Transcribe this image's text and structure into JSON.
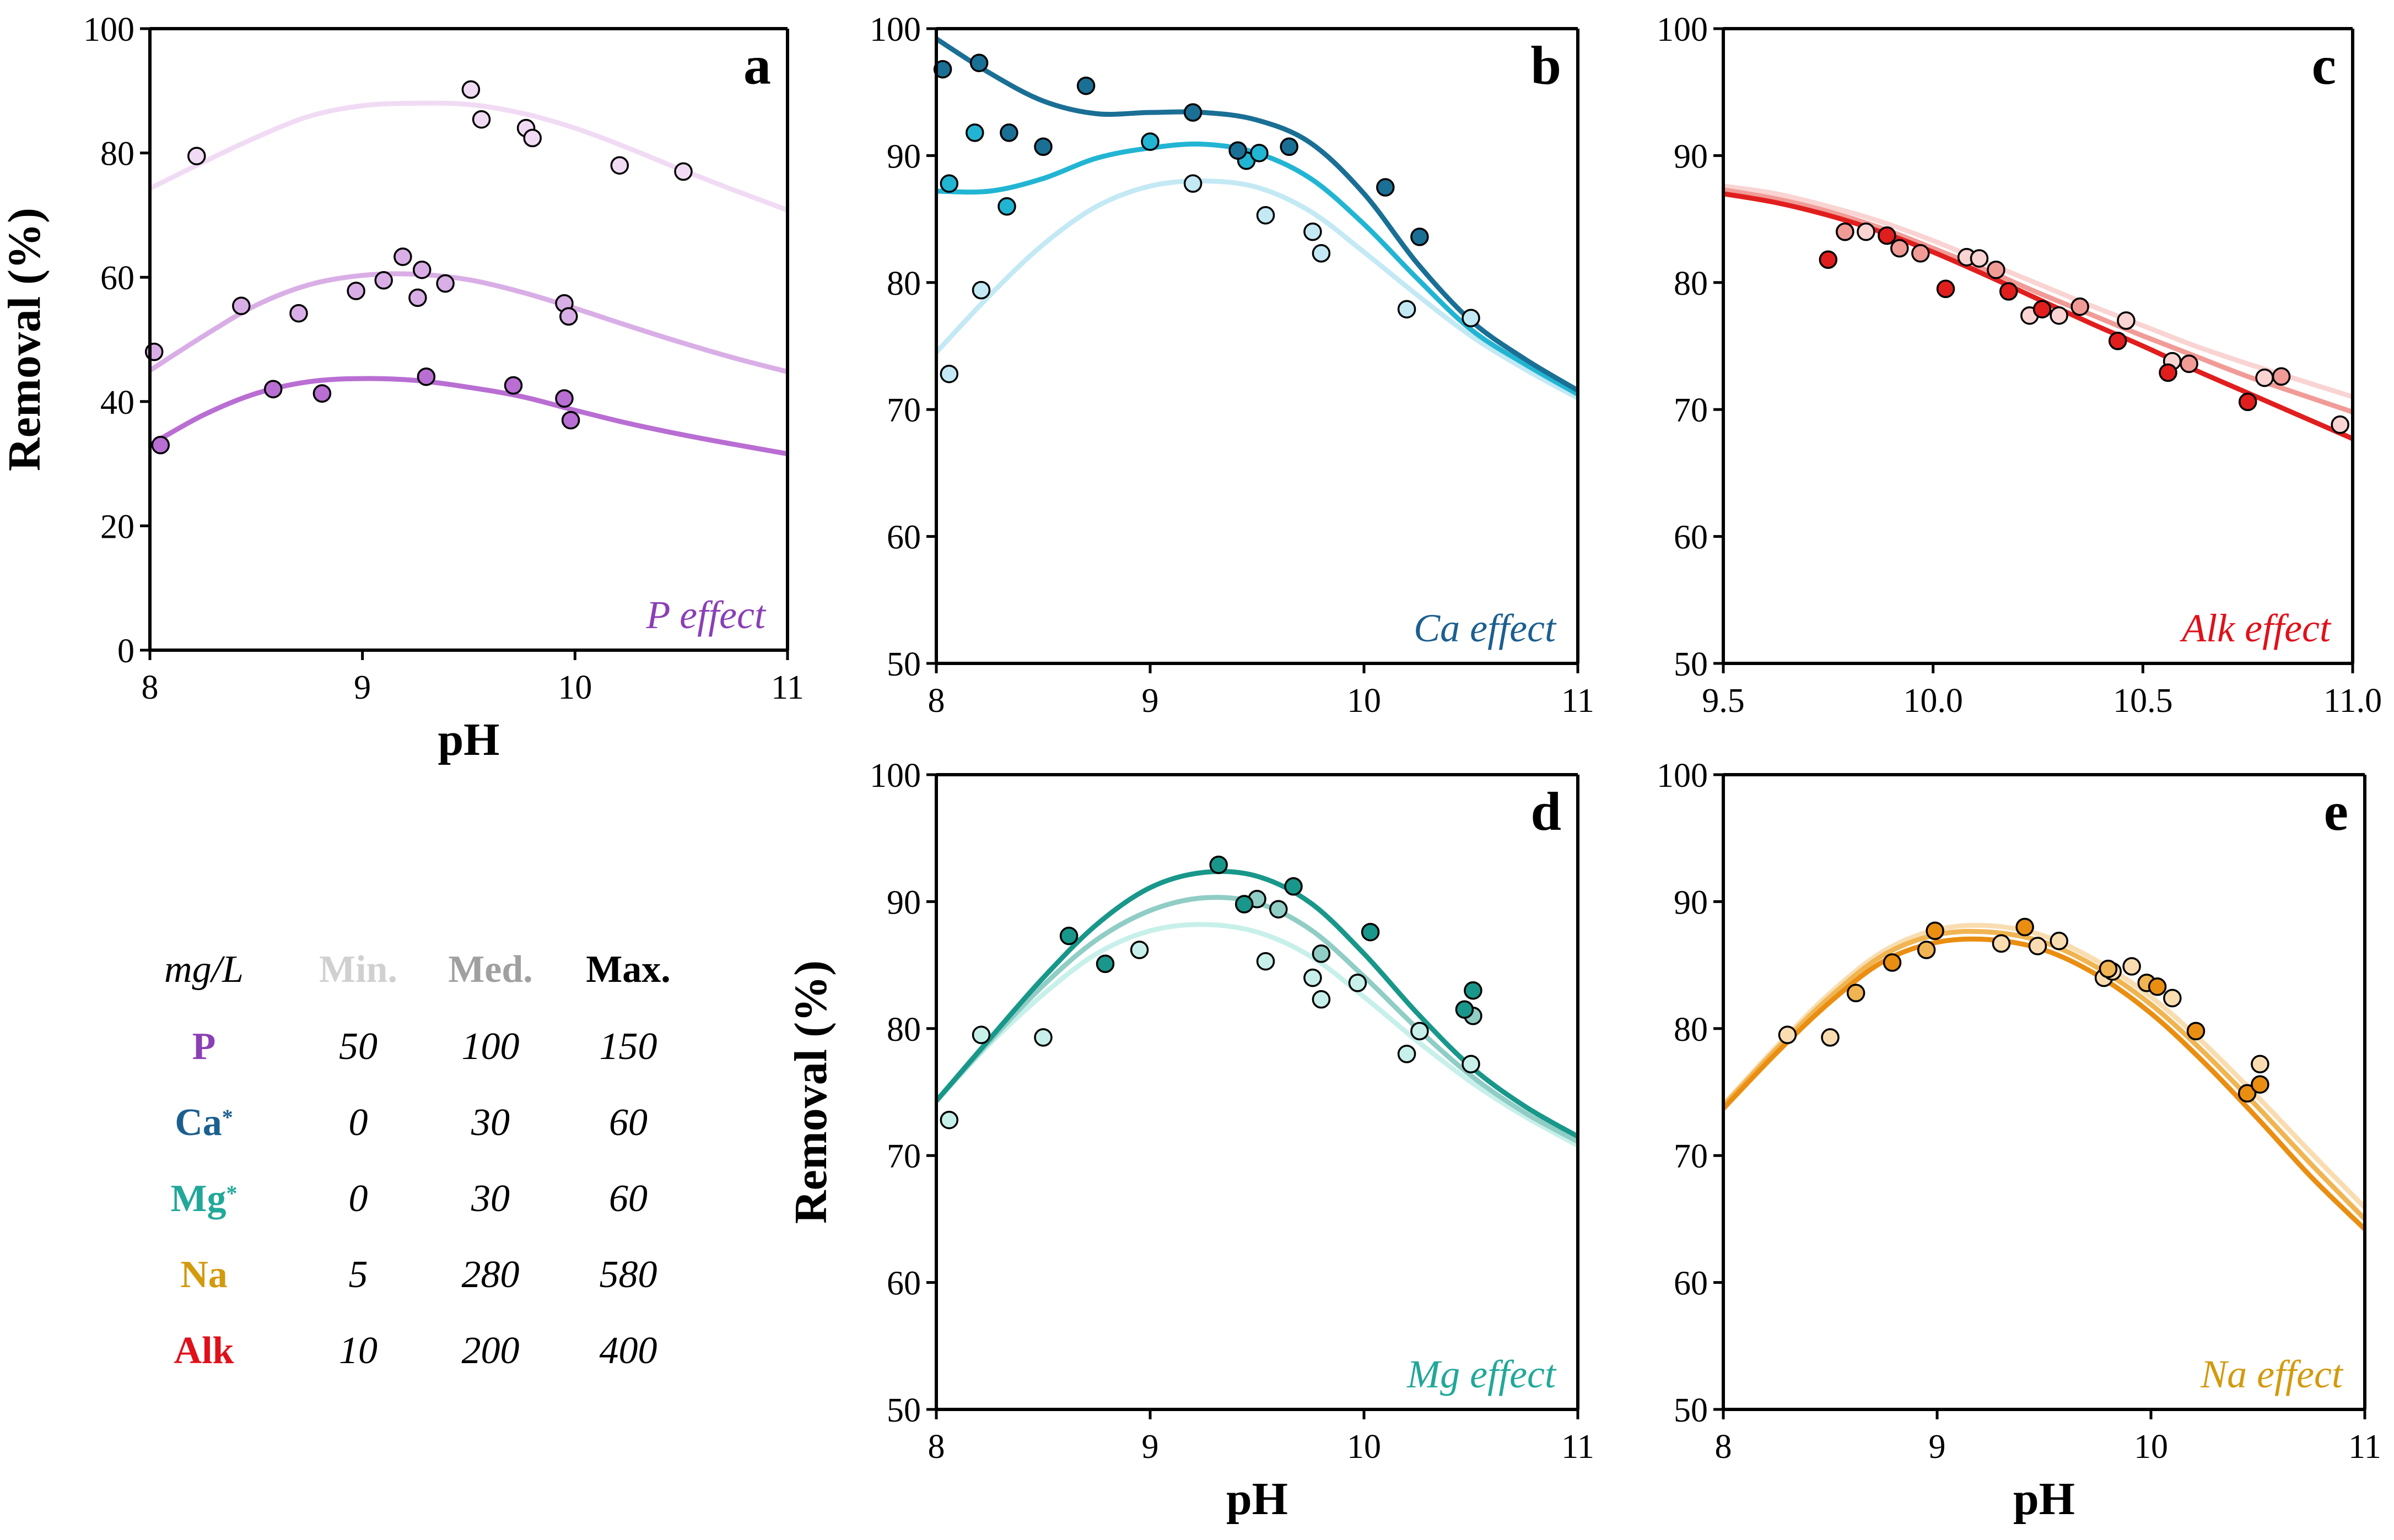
{
  "figure": {
    "legend": {
      "unit_label": "mg/L",
      "col_min": "Min.",
      "col_med": "Med.",
      "col_max": "Max.",
      "col_colors": {
        "min": "#d0d0d0",
        "med": "#a0a0a0",
        "max": "#000000"
      },
      "rows": [
        {
          "name": "P",
          "sup": "",
          "color": "#8a3fb5",
          "min": "50",
          "med": "100",
          "max": "150"
        },
        {
          "name": "Ca",
          "sup": "*",
          "color": "#1c5f8f",
          "min": "0",
          "med": "30",
          "max": "60"
        },
        {
          "name": "Mg",
          "sup": "*",
          "color": "#21a89a",
          "min": "0",
          "med": "30",
          "max": "60"
        },
        {
          "name": "Na",
          "sup": "",
          "color": "#d39a0e",
          "min": "5",
          "med": "280",
          "max": "580"
        },
        {
          "name": "Alk",
          "sup": "",
          "color": "#e0101a",
          "min": "10",
          "med": "200",
          "max": "400"
        }
      ]
    }
  },
  "chart_data": [
    {
      "id": "a",
      "type": "scatter",
      "panel_label": "a",
      "effect_label": "P effect",
      "effect_color": "#8a3fb5",
      "xlabel": "pH",
      "ylabel": "Removal (%)",
      "xlim": [
        8,
        11
      ],
      "ylim": [
        0,
        100
      ],
      "xticks": [
        8,
        9,
        10,
        11
      ],
      "xtick_labels": [
        "8",
        "9",
        "10",
        "11"
      ],
      "yticks": [
        0,
        20,
        40,
        60,
        80,
        100
      ],
      "ytick_labels": [
        "0",
        "20",
        "40",
        "60",
        "80",
        "100"
      ],
      "series": [
        {
          "name": "P Min.",
          "color": "#f1dbf4",
          "curve_x": [
            8,
            8.25,
            8.5,
            8.75,
            9,
            9.25,
            9.5,
            9.75,
            10,
            10.25,
            10.5,
            10.75,
            11
          ],
          "curve_y": [
            74.3,
            78.5,
            82.5,
            85.9,
            87.6,
            88.0,
            87.8,
            86.4,
            84.0,
            80.8,
            77.3,
            74.0,
            70.8
          ],
          "points_x": [
            8.22,
            9.51,
            9.56,
            9.77,
            9.8,
            10.21,
            10.51
          ],
          "points_y": [
            79.5,
            90.2,
            85.4,
            84.0,
            82.4,
            78.0,
            77.0
          ]
        },
        {
          "name": "P Med.",
          "color": "#d9aee6",
          "curve_x": [
            8,
            8.25,
            8.5,
            8.75,
            9,
            9.25,
            9.5,
            9.75,
            10,
            10.25,
            10.5,
            10.75,
            11
          ],
          "curve_y": [
            45.0,
            50.5,
            55.5,
            58.8,
            60.3,
            60.5,
            59.6,
            57.6,
            55.0,
            52.2,
            49.5,
            47.0,
            44.8
          ],
          "points_x": [
            8.02,
            8.43,
            8.7,
            8.97,
            9.1,
            9.19,
            9.26,
            9.28,
            9.39,
            9.95,
            9.97
          ],
          "points_y": [
            48.0,
            55.4,
            54.2,
            57.8,
            59.5,
            63.3,
            56.7,
            61.2,
            59.0,
            55.8,
            53.7
          ]
        },
        {
          "name": "P Max.",
          "color": "#b96ed3",
          "curve_x": [
            8,
            8.25,
            8.5,
            8.75,
            9,
            9.25,
            9.5,
            9.75,
            10,
            10.25,
            10.5,
            10.75,
            11
          ],
          "curve_y": [
            33.0,
            37.8,
            41.3,
            43.2,
            43.7,
            43.4,
            42.3,
            40.8,
            38.6,
            36.5,
            34.7,
            33.1,
            31.6
          ],
          "points_x": [
            8.05,
            8.58,
            8.81,
            9.3,
            9.71,
            9.95,
            9.98
          ],
          "points_y": [
            33.0,
            42.0,
            41.3,
            44.0,
            42.6,
            40.5,
            37.0
          ]
        }
      ]
    },
    {
      "id": "b",
      "type": "scatter",
      "panel_label": "b",
      "effect_label": "Ca effect",
      "effect_color": "#1c5f8f",
      "xlabel": "",
      "ylabel": "",
      "xlim": [
        8,
        11
      ],
      "ylim": [
        50,
        100
      ],
      "xticks": [
        8,
        9,
        10,
        11
      ],
      "xtick_labels": [
        "8",
        "9",
        "10",
        "11"
      ],
      "yticks": [
        50,
        60,
        70,
        80,
        90,
        100
      ],
      "ytick_labels": [
        "50",
        "60",
        "70",
        "80",
        "90",
        "100"
      ],
      "series": [
        {
          "name": "Ca Min.",
          "color": "#c3e9f4",
          "curve_x": [
            8,
            8.25,
            8.5,
            8.75,
            9,
            9.25,
            9.5,
            9.75,
            10,
            10.25,
            10.5,
            10.75,
            11
          ],
          "curve_y": [
            74.5,
            79.0,
            83.0,
            86.0,
            87.6,
            88.0,
            87.5,
            85.6,
            82.4,
            79.0,
            75.8,
            73.2,
            70.9
          ],
          "points_x": [
            8.06,
            8.21,
            9.2,
            9.54,
            9.76,
            9.8,
            10.2,
            10.5
          ],
          "points_y": [
            72.8,
            79.4,
            87.8,
            85.3,
            84.0,
            82.3,
            77.9,
            77.2
          ]
        },
        {
          "name": "Ca Med.",
          "color": "#22b5d3",
          "curve_x": [
            8,
            8.25,
            8.5,
            8.75,
            9,
            9.25,
            9.5,
            9.75,
            10,
            10.25,
            10.5,
            10.75,
            11
          ],
          "curve_y": [
            87.2,
            87.2,
            88.2,
            89.8,
            90.6,
            90.9,
            90.2,
            88.2,
            84.6,
            80.3,
            76.3,
            73.6,
            71.2
          ],
          "points_x": [
            8.06,
            8.18,
            8.33,
            9.0,
            9.45,
            9.51
          ],
          "points_y": [
            87.8,
            91.8,
            86.0,
            91.1,
            89.6,
            90.2
          ]
        },
        {
          "name": "Ca Max.",
          "color": "#1a6f95",
          "curve_x": [
            8,
            8.25,
            8.5,
            8.75,
            9,
            9.25,
            9.5,
            9.75,
            10,
            10.25,
            10.5,
            10.75,
            11
          ],
          "curve_y": [
            99.2,
            96.5,
            94.3,
            93.3,
            93.4,
            93.4,
            92.8,
            91.0,
            87.0,
            81.5,
            77.0,
            74.0,
            71.5
          ],
          "points_x": [
            8.03,
            8.2,
            8.34,
            8.5,
            8.7,
            9.2,
            9.41,
            9.65,
            10.1,
            10.26
          ],
          "points_y": [
            96.8,
            97.3,
            91.8,
            90.7,
            95.5,
            93.4,
            90.4,
            90.7,
            87.5,
            83.6
          ]
        }
      ]
    },
    {
      "id": "c",
      "type": "scatter",
      "panel_label": "c",
      "effect_label": "Alk effect",
      "effect_color": "#e0101a",
      "xlabel": "",
      "ylabel": "",
      "xlim": [
        9.5,
        11.0
      ],
      "ylim": [
        50,
        100
      ],
      "xticks": [
        9.5,
        10.0,
        10.5,
        11.0
      ],
      "xtick_labels": [
        "9.5",
        "10.0",
        "10.5",
        "11.0"
      ],
      "yticks": [
        50,
        60,
        70,
        80,
        90,
        100
      ],
      "yticks_labels_note": "",
      "ytick_labels": [
        "50",
        "60",
        "70",
        "80",
        "90",
        "100"
      ],
      "series": [
        {
          "name": "Alk Min.",
          "color": "#f9d4d2",
          "curve_x": [
            9.5,
            9.625,
            9.75,
            9.875,
            10.0,
            10.125,
            10.25,
            10.375,
            10.5,
            10.625,
            10.75,
            10.875,
            11.0
          ],
          "curve_y": [
            87.6,
            87.0,
            86.0,
            84.8,
            83.3,
            81.6,
            79.9,
            78.2,
            76.6,
            75.0,
            73.6,
            72.3,
            71.0
          ],
          "points_x": [
            9.79,
            9.84,
            10.08,
            10.11,
            10.23,
            10.3,
            10.46,
            10.57,
            10.79,
            10.97
          ],
          "points_y": [
            84.0,
            84.0,
            82.0,
            81.9,
            77.4,
            77.4,
            77.0,
            73.8,
            72.5,
            68.8
          ]
        },
        {
          "name": "Alk Med.",
          "color": "#f19b97",
          "curve_x": [
            9.5,
            9.625,
            9.75,
            9.875,
            10.0,
            10.125,
            10.25,
            10.375,
            10.5,
            10.625,
            10.75,
            10.875,
            11.0
          ],
          "curve_y": [
            87.3,
            86.6,
            85.6,
            84.3,
            82.7,
            81.0,
            79.2,
            77.5,
            75.8,
            74.2,
            72.6,
            71.2,
            69.8
          ],
          "points_x": [
            9.79,
            9.92,
            9.97,
            10.15,
            10.35,
            10.61,
            10.83
          ],
          "points_y": [
            84.0,
            82.7,
            82.3,
            81.0,
            78.1,
            73.6,
            72.6
          ]
        },
        {
          "name": "Alk Max.",
          "color": "#e11e1e",
          "curve_x": [
            9.5,
            9.625,
            9.75,
            9.875,
            10.0,
            10.125,
            10.25,
            10.375,
            10.5,
            10.625,
            10.75,
            10.875,
            11.0
          ],
          "curve_y": [
            87.0,
            86.3,
            85.3,
            84.0,
            82.4,
            80.6,
            78.7,
            76.8,
            75.0,
            73.1,
            71.3,
            69.5,
            67.7
          ],
          "points_x": [
            9.75,
            9.89,
            10.03,
            10.18,
            10.26,
            10.44,
            10.56,
            10.75
          ],
          "points_y": [
            81.8,
            83.7,
            79.5,
            79.3,
            77.9,
            75.4,
            72.9,
            70.6
          ]
        }
      ]
    },
    {
      "id": "d",
      "type": "scatter",
      "panel_label": "d",
      "effect_label": "Mg effect",
      "effect_color": "#21a89a",
      "xlabel": "pH",
      "ylabel": "Removal (%)",
      "xlim": [
        8,
        11
      ],
      "ylim": [
        50,
        100
      ],
      "xticks": [
        8,
        9,
        10,
        11
      ],
      "xtick_labels": [
        "8",
        "9",
        "10",
        "11"
      ],
      "yticks": [
        50,
        60,
        70,
        80,
        90,
        100
      ],
      "ytick_labels": [
        "50",
        "60",
        "70",
        "80",
        "90",
        "100"
      ],
      "series": [
        {
          "name": "Mg Min.",
          "color": "#c8f0ea",
          "curve_x": [
            8,
            8.25,
            8.5,
            8.75,
            9,
            9.25,
            9.5,
            9.75,
            10,
            10.25,
            10.5,
            10.75,
            11
          ],
          "curve_y": [
            74.3,
            78.8,
            82.7,
            85.9,
            87.7,
            88.2,
            87.6,
            85.7,
            82.5,
            79.0,
            75.8,
            73.1,
            70.8
          ],
          "points_x": [
            8.06,
            8.21,
            8.5,
            8.95,
            9.54,
            9.76,
            9.8,
            9.97,
            10.2,
            10.26,
            10.5
          ],
          "points_y": [
            72.8,
            79.5,
            79.3,
            86.2,
            85.3,
            84.0,
            82.3,
            83.6,
            78.0,
            79.8,
            77.2
          ]
        },
        {
          "name": "Mg Med.",
          "color": "#8fcdc5",
          "curve_x": [
            8,
            8.25,
            8.5,
            8.75,
            9,
            9.25,
            9.5,
            9.75,
            10,
            10.25,
            10.5,
            10.75,
            11
          ],
          "curve_y": [
            74.3,
            79.0,
            83.4,
            87.0,
            89.3,
            90.3,
            89.9,
            87.8,
            84.1,
            80.0,
            76.3,
            73.4,
            71.1
          ],
          "points_x": [
            9.5,
            9.6,
            9.8,
            10.51
          ],
          "points_y": [
            90.2,
            89.4,
            85.9,
            81.0
          ]
        },
        {
          "name": "Mg Max.",
          "color": "#18978a",
          "curve_x": [
            8,
            8.25,
            8.5,
            8.75,
            9,
            9.25,
            9.5,
            9.75,
            10,
            10.25,
            10.5,
            10.75,
            11
          ],
          "curve_y": [
            74.3,
            79.2,
            84.0,
            88.2,
            91.1,
            92.3,
            92.0,
            89.9,
            85.9,
            81.2,
            77.0,
            73.9,
            71.5
          ],
          "points_x": [
            8.62,
            8.79,
            9.32,
            9.44,
            9.67,
            10.03,
            10.47,
            10.51
          ],
          "points_y": [
            87.3,
            85.1,
            92.9,
            89.8,
            91.2,
            87.6,
            81.5,
            83.0
          ]
        }
      ]
    },
    {
      "id": "e",
      "type": "scatter",
      "panel_label": "e",
      "effect_label": "Na effect",
      "effect_color": "#d39a0e",
      "xlabel": "pH",
      "ylabel": "",
      "xlim": [
        8,
        11
      ],
      "ylim": [
        50,
        100
      ],
      "xticks": [
        8,
        9,
        10,
        11
      ],
      "xtick_labels": [
        "8",
        "9",
        "10",
        "11"
      ],
      "yticks": [
        50,
        60,
        70,
        80,
        90,
        100
      ],
      "ytick_labels": [
        "50",
        "60",
        "70",
        "80",
        "90",
        "100"
      ],
      "series": [
        {
          "name": "Na Min.",
          "color": "#f9ddb1",
          "curve_x": [
            8,
            8.25,
            8.5,
            8.75,
            9,
            9.25,
            9.5,
            9.75,
            10,
            10.25,
            10.5,
            10.75,
            11
          ],
          "curve_y": [
            74.0,
            78.6,
            82.8,
            86.1,
            87.8,
            88.1,
            87.3,
            85.3,
            82.5,
            78.8,
            74.6,
            70.2,
            65.9
          ],
          "points_x": [
            8.3,
            8.5,
            9.3,
            9.47,
            9.57,
            9.78,
            9.82,
            9.91,
            10.1,
            10.51
          ],
          "points_y": [
            79.5,
            79.3,
            86.7,
            86.5,
            86.9,
            84.0,
            84.5,
            84.9,
            82.4,
            77.2
          ]
        },
        {
          "name": "Na Med.",
          "color": "#f0b552",
          "curve_x": [
            8,
            8.25,
            8.5,
            8.75,
            9,
            9.25,
            9.5,
            9.75,
            10,
            10.25,
            10.5,
            10.75,
            11
          ],
          "curve_y": [
            73.9,
            78.4,
            82.5,
            85.8,
            87.4,
            87.6,
            86.8,
            84.8,
            81.9,
            78.1,
            73.8,
            69.3,
            65.0
          ],
          "points_x": [
            8.62,
            8.95,
            9.8,
            9.98
          ],
          "points_y": [
            82.8,
            86.2,
            84.7,
            83.6
          ]
        },
        {
          "name": "Na Max.",
          "color": "#ea8e12",
          "curve_x": [
            8,
            8.25,
            8.5,
            8.75,
            9,
            9.25,
            9.5,
            9.75,
            10,
            10.25,
            10.5,
            10.75,
            11
          ],
          "curve_y": [
            73.7,
            78.1,
            82.1,
            85.3,
            86.8,
            87.0,
            86.2,
            84.2,
            81.2,
            77.3,
            72.9,
            68.3,
            64.2
          ],
          "points_x": [
            8.79,
            8.99,
            9.41,
            10.03,
            10.21,
            10.45,
            10.51
          ],
          "points_y": [
            85.2,
            87.7,
            88.0,
            83.3,
            79.8,
            74.9,
            75.6
          ]
        }
      ]
    }
  ]
}
